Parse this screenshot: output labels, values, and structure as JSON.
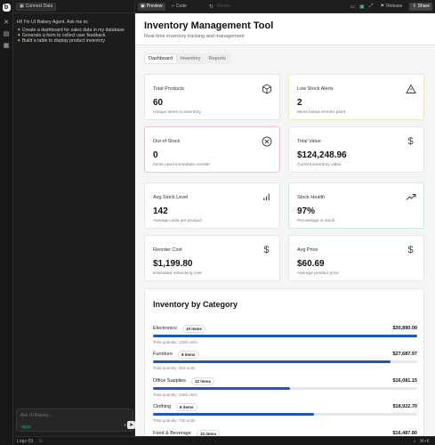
{
  "rail": {
    "logo": "b"
  },
  "chat": {
    "connect_label": "Connect Data",
    "greeting": "Hi! I'm UI Bakery Agent. Ask me to:",
    "suggestions": [
      "Create a dashboard for sales data in my database",
      "Generate a form to collect user feedback",
      "Build a table to display product inventory"
    ],
    "input_placeholder": "Ask UI Bakery...",
    "usage": "81%"
  },
  "toolbar": {
    "preview_label": "Preview",
    "code_label": "Code",
    "device_label": "Device",
    "release_label": "Release",
    "share_label": "Share"
  },
  "statusbar": {
    "logs_label": "Logs (0)",
    "shortcut": "⌘+K"
  },
  "app": {
    "title": "Inventory Management Tool",
    "subtitle": "Real-time inventory tracking and management",
    "tabs": [
      "Dashboard",
      "Inventory",
      "Reports"
    ],
    "cards": [
      {
        "label": "Total Products",
        "value": "60",
        "desc": "Unique items in inventory",
        "icon": "box-icon"
      },
      {
        "label": "Low Stock Alerts",
        "value": "2",
        "desc": "Items below reorder point",
        "icon": "warning-icon"
      },
      {
        "label": "Out of Stock",
        "value": "0",
        "desc": "Items need immediate reorder",
        "icon": "x-circle-icon"
      },
      {
        "label": "Total Value",
        "value": "$124,248.96",
        "desc": "Current inventory value",
        "icon": "dollar-icon"
      },
      {
        "label": "Avg Stock Level",
        "value": "142",
        "desc": "Average units per product",
        "icon": "bar-chart-icon"
      },
      {
        "label": "Stock Health",
        "value": "97%",
        "desc": "Percentage in stock",
        "icon": "trending-up-icon"
      },
      {
        "label": "Reorder Cost",
        "value": "$1,199.80",
        "desc": "Estimated restocking cost",
        "icon": "dollar-icon"
      },
      {
        "label": "Avg Price",
        "value": "$60.69",
        "desc": "Average product price",
        "icon": "dollar-icon"
      }
    ],
    "category_section": {
      "title": "Inventory by Category",
      "rows": [
        {
          "name": "Electronics",
          "badge": "10 items",
          "amount": "$30,890.00",
          "qty": "Total quantity: 1000 units",
          "fill": 1.0
        },
        {
          "name": "Furniture",
          "badge": "8 items",
          "amount": "$27,687.97",
          "qty": "Total quantity: 203 units",
          "fill": 0.9
        },
        {
          "name": "Office Supplies",
          "badge": "12 items",
          "amount": "$16,081.15",
          "qty": "Total quantity: 3365 units",
          "fill": 0.52
        },
        {
          "name": "Clothing",
          "badge": "8 items",
          "amount": "$18,922.70",
          "qty": "Total quantity: 730 units",
          "fill": 0.61
        },
        {
          "name": "Food & Beverage",
          "badge": "10 items",
          "amount": "$16,487.80",
          "qty": "",
          "fill": 0.53
        }
      ]
    }
  }
}
